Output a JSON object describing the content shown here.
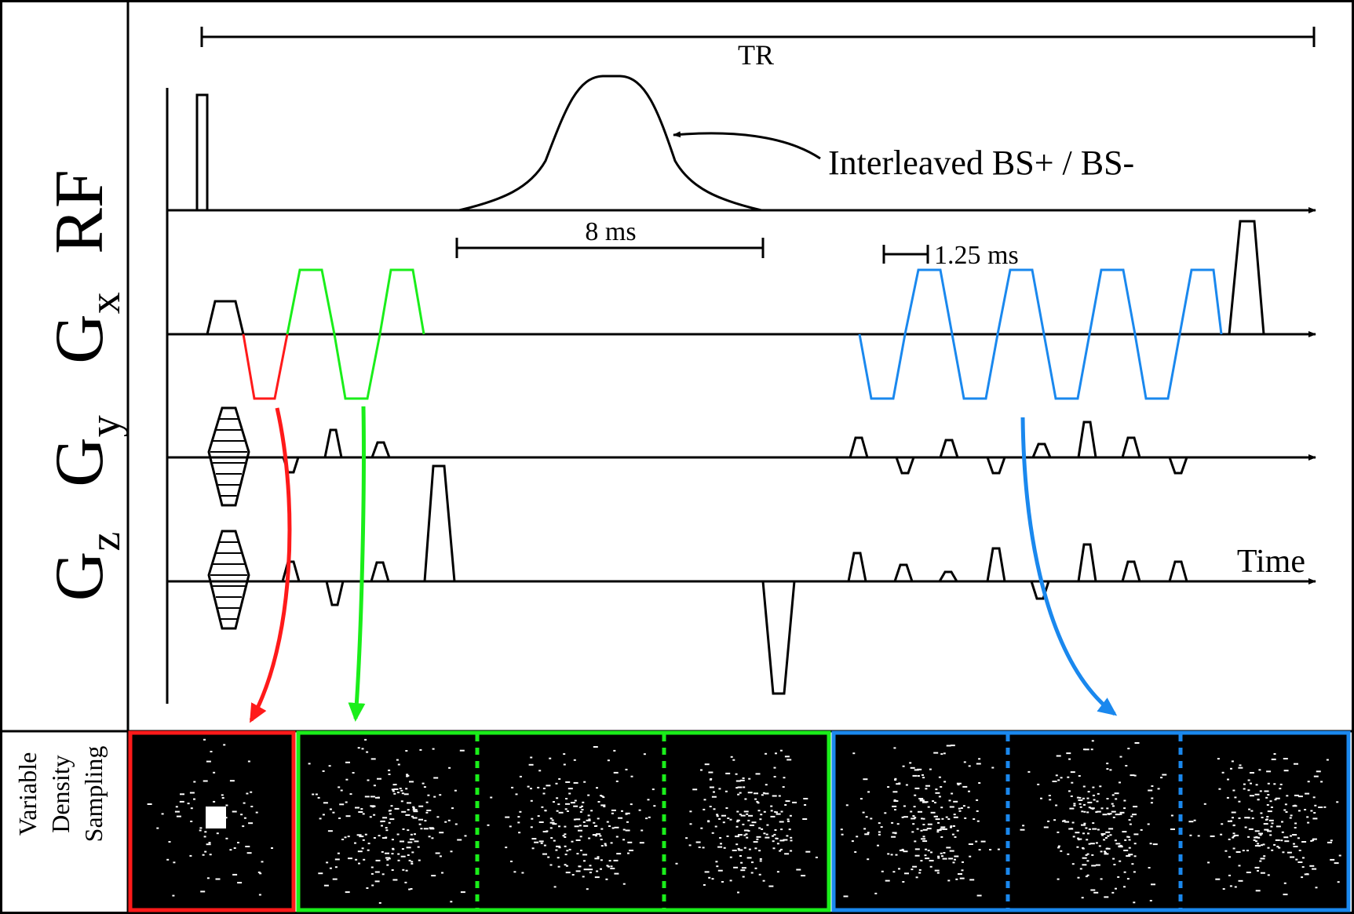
{
  "channels": {
    "rf": "RF",
    "gx": {
      "base": "G",
      "sub": "x"
    },
    "gy": {
      "base": "G",
      "sub": "y"
    },
    "gz": {
      "base": "G",
      "sub": "z"
    }
  },
  "annotations": {
    "tr": "TR",
    "bs_pulse": "Interleaved BS+ / BS-",
    "pulse_duration": "8 ms",
    "echo_spacing": "1.25 ms",
    "time_axis": "Time"
  },
  "sampling": {
    "side_label_lines": [
      "Variable",
      "Density",
      "Sampling"
    ]
  },
  "colors": {
    "red": "#ff1a1a",
    "green": "#1aee1a",
    "blue": "#1a88ee",
    "black": "#000000"
  }
}
